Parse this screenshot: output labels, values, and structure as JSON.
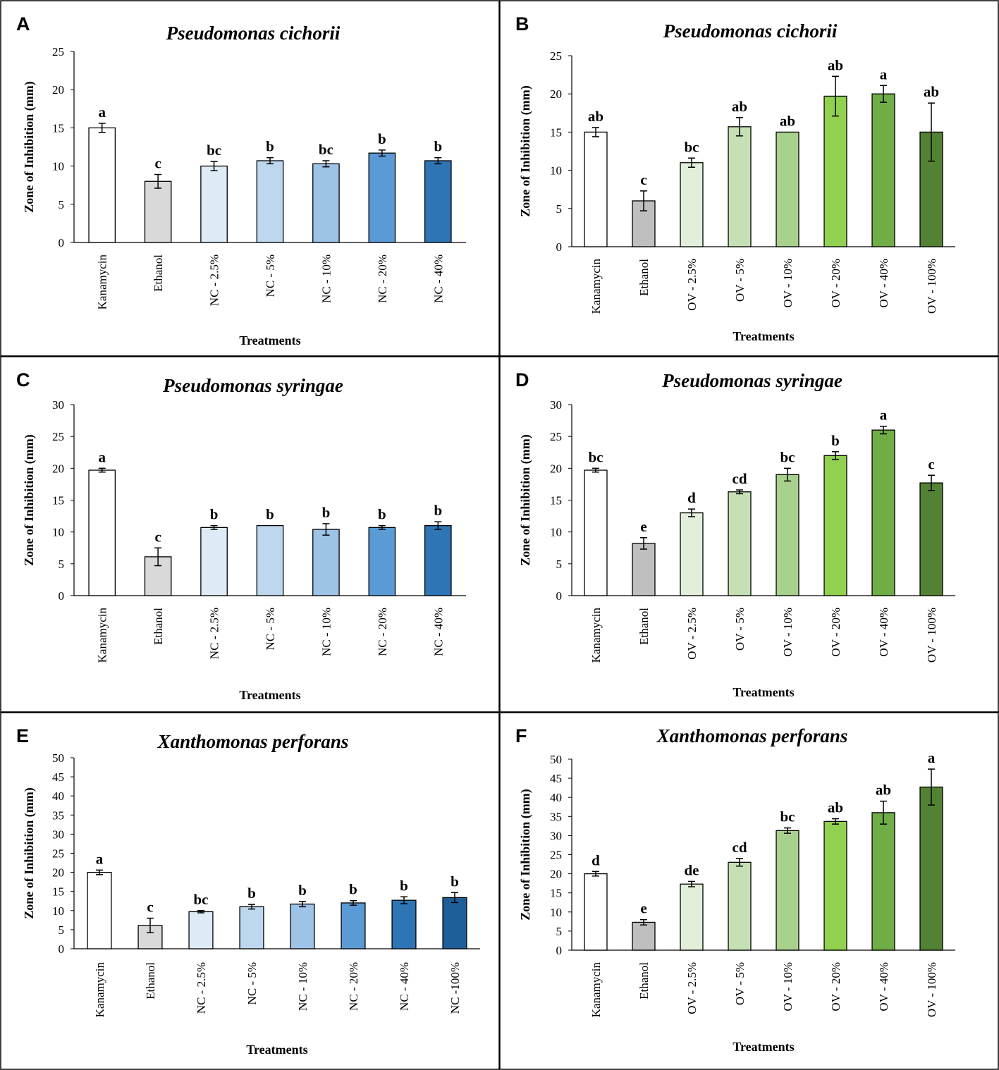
{
  "figure": {
    "border_color": "#000000",
    "bar_outline_color": "#000000"
  },
  "chart_data": [
    {
      "panel": "A",
      "type": "bar",
      "title": "Pseudomonas cichorii",
      "xlabel": "Treatments",
      "ylabel": "Zone of Inhibition (mm)",
      "ylim": [
        0,
        25
      ],
      "ytick_step": 5,
      "grid": false,
      "categories": [
        "Kanamycin",
        "Ethanol",
        "NC - 2.5%",
        "NC - 5%",
        "NC - 10%",
        "NC - 20%",
        "NC - 40%"
      ],
      "values": [
        15,
        8,
        10,
        10.7,
        10.3,
        11.7,
        10.7
      ],
      "errors": [
        0.6,
        0.9,
        0.6,
        0.4,
        0.4,
        0.4,
        0.4
      ],
      "significance": [
        "a",
        "c",
        "bc",
        "b",
        "bc",
        "b",
        "b"
      ],
      "colors": [
        "#ffffff",
        "#d9d9d9",
        "#deebf7",
        "#bdd7ee",
        "#9dc3e6",
        "#5b9bd5",
        "#2e75b6"
      ]
    },
    {
      "panel": "B",
      "type": "bar",
      "title": "Pseudomonas cichorii",
      "xlabel": "Treatments",
      "ylabel": "Zone of Inhibition (mm)",
      "ylim": [
        0,
        25
      ],
      "ytick_step": 5,
      "grid": false,
      "categories": [
        "Kanamycin",
        "Ethanol",
        "OV - 2.5%",
        "OV - 5%",
        "OV - 10%",
        "OV - 20%",
        "OV - 40%",
        "OV - 100%"
      ],
      "values": [
        15,
        6,
        11,
        15.7,
        15,
        19.7,
        20,
        15
      ],
      "errors": [
        0.6,
        1.3,
        0.6,
        1.2,
        0,
        2.6,
        1.1,
        3.8
      ],
      "significance": [
        "ab",
        "c",
        "bc",
        "ab",
        "ab",
        "ab",
        "a",
        "ab"
      ],
      "colors": [
        "#ffffff",
        "#bfbfbf",
        "#e2efda",
        "#c5e0b4",
        "#a9d18e",
        "#92d050",
        "#70ad47",
        "#548235"
      ]
    },
    {
      "panel": "C",
      "type": "bar",
      "title": "Pseudomonas syringae",
      "xlabel": "Treatments",
      "ylabel": "Zone of Inhibition (mm)",
      "ylim": [
        0,
        30
      ],
      "ytick_step": 5,
      "grid": false,
      "categories": [
        "Kanamycin",
        "Ethanol",
        "NC - 2.5%",
        "NC - 5%",
        "NC - 10%",
        "NC - 20%",
        "NC - 40%"
      ],
      "values": [
        19.7,
        6.1,
        10.7,
        11,
        10.4,
        10.7,
        11
      ],
      "errors": [
        0.3,
        1.4,
        0.3,
        0,
        0.9,
        0.3,
        0.6
      ],
      "significance": [
        "a",
        "c",
        "b",
        "b",
        "b",
        "b",
        "b"
      ],
      "colors": [
        "#ffffff",
        "#d9d9d9",
        "#deebf7",
        "#bdd7ee",
        "#9dc3e6",
        "#5b9bd5",
        "#2e75b6"
      ]
    },
    {
      "panel": "D",
      "type": "bar",
      "title": "Pseudomonas syringae",
      "xlabel": "Treatments",
      "ylabel": "Zone of Inhibition (mm)",
      "ylim": [
        0,
        30
      ],
      "ytick_step": 5,
      "grid": false,
      "categories": [
        "Kanamycin",
        "Ethanol",
        "OV - 2.5%",
        "OV - 5%",
        "OV - 10%",
        "OV - 20%",
        "OV - 40%",
        "OV - 100%"
      ],
      "values": [
        19.7,
        8.2,
        13,
        16.3,
        19,
        22,
        26,
        17.7
      ],
      "errors": [
        0.3,
        0.9,
        0.6,
        0.3,
        1,
        0.6,
        0.6,
        1.2
      ],
      "significance": [
        "bc",
        "e",
        "d",
        "cd",
        "bc",
        "b",
        "a",
        "c"
      ],
      "colors": [
        "#ffffff",
        "#bfbfbf",
        "#e2efda",
        "#c5e0b4",
        "#a9d18e",
        "#92d050",
        "#70ad47",
        "#548235"
      ]
    },
    {
      "panel": "E",
      "type": "bar",
      "title": "Xanthomonas perforans",
      "xlabel": "Treatments",
      "ylabel": "Zone of Inhibition (mm)",
      "ylim": [
        0,
        50
      ],
      "ytick_step": 5,
      "grid": false,
      "categories": [
        "Kanamycin",
        "Ethanol",
        "NC - 2.5%",
        "NC - 5%",
        "NC - 10%",
        "NC - 20%",
        "NC - 40%",
        "NC -100%"
      ],
      "values": [
        20,
        6.1,
        9.7,
        11,
        11.7,
        12,
        12.7,
        13.4
      ],
      "errors": [
        0.6,
        1.9,
        0.3,
        0.6,
        0.7,
        0.6,
        0.9,
        1.3
      ],
      "significance": [
        "a",
        "c",
        "bc",
        "b",
        "b",
        "b",
        "b",
        "b"
      ],
      "colors": [
        "#ffffff",
        "#d9d9d9",
        "#deebf7",
        "#bdd7ee",
        "#9dc3e6",
        "#5b9bd5",
        "#2e75b6",
        "#1f5f99"
      ]
    },
    {
      "panel": "F",
      "type": "bar",
      "title": "Xanthomonas perforans",
      "xlabel": "Treatments",
      "ylabel": "Zone of Inhibition (mm)",
      "ylim": [
        0,
        50
      ],
      "ytick_step": 5,
      "grid": false,
      "categories": [
        "Kanamycin",
        "Ethanol",
        "OV - 2.5%",
        "OV - 5%",
        "OV - 10%",
        "OV - 20%",
        "OV - 40%",
        "OV - 100%"
      ],
      "values": [
        20,
        7.3,
        17.3,
        23,
        31.3,
        33.7,
        36,
        42.7
      ],
      "errors": [
        0.6,
        0.7,
        0.7,
        1,
        0.7,
        0.7,
        3,
        4.7
      ],
      "significance": [
        "d",
        "e",
        "de",
        "cd",
        "bc",
        "ab",
        "ab",
        "a"
      ],
      "colors": [
        "#ffffff",
        "#bfbfbf",
        "#e2efda",
        "#c5e0b4",
        "#a9d18e",
        "#92d050",
        "#70ad47",
        "#548235"
      ]
    }
  ]
}
